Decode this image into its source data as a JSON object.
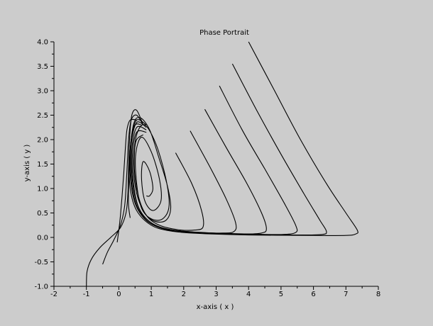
{
  "chart_data": {
    "type": "line",
    "title": "Phase Portrait",
    "xlabel": "x-axis ( x )",
    "ylabel": "y-axis ( y )",
    "xlim": [
      -2,
      8
    ],
    "ylim": [
      -1.0,
      4.0
    ],
    "xticks": [
      "-2",
      "-1",
      "0",
      "1",
      "2",
      "3",
      "4",
      "5",
      "6",
      "7",
      "8"
    ],
    "yticks": [
      "-1.0",
      "-0.5",
      "0.0",
      "0.5",
      "1.0",
      "1.5",
      "2.0",
      "2.5",
      "3.0",
      "3.5",
      "4.0"
    ],
    "grid": false,
    "colors": {
      "background": "#cccccc",
      "line": "#000000"
    },
    "series": [
      {
        "points": [
          [
            4.0,
            4.0
          ],
          [
            4.8,
            3.0
          ],
          [
            5.6,
            2.0
          ],
          [
            6.4,
            1.1
          ],
          [
            7.0,
            0.5
          ],
          [
            7.35,
            0.15
          ],
          [
            7.3,
            0.07
          ],
          [
            7.0,
            0.04
          ],
          [
            6.0,
            0.04
          ],
          [
            4.0,
            0.05
          ],
          [
            2.5,
            0.08
          ],
          [
            1.6,
            0.13
          ],
          [
            1.0,
            0.25
          ],
          [
            0.55,
            0.55
          ],
          [
            0.35,
            1.0
          ],
          [
            0.33,
            1.6
          ],
          [
            0.45,
            2.3
          ],
          [
            0.65,
            2.45
          ],
          [
            0.95,
            2.2
          ],
          [
            1.25,
            1.6
          ],
          [
            1.5,
            1.05
          ],
          [
            1.6,
            0.6
          ],
          [
            1.45,
            0.35
          ],
          [
            1.1,
            0.33
          ],
          [
            0.8,
            0.5
          ],
          [
            0.55,
            0.9
          ],
          [
            0.45,
            1.5
          ],
          [
            0.55,
            2.1
          ],
          [
            0.8,
            2.3
          ],
          [
            1.15,
            1.9
          ],
          [
            1.45,
            1.2
          ],
          [
            1.55,
            0.65
          ],
          [
            1.35,
            0.38
          ],
          [
            1.0,
            0.38
          ],
          [
            0.7,
            0.6
          ],
          [
            0.55,
            1.1
          ],
          [
            0.52,
            1.7
          ],
          [
            0.7,
            2.05
          ],
          [
            1.0,
            1.75
          ],
          [
            1.25,
            1.2
          ],
          [
            1.3,
            0.75
          ],
          [
            1.05,
            0.55
          ],
          [
            0.8,
            0.75
          ],
          [
            0.7,
            1.2
          ],
          [
            0.75,
            1.55
          ],
          [
            0.95,
            1.35
          ],
          [
            1.05,
            1.0
          ],
          [
            0.95,
            0.85
          ],
          [
            0.85,
            0.85
          ]
        ]
      },
      {
        "points": [
          [
            3.5,
            3.55
          ],
          [
            4.25,
            2.6
          ],
          [
            5.0,
            1.7
          ],
          [
            5.7,
            0.9
          ],
          [
            6.2,
            0.35
          ],
          [
            6.4,
            0.12
          ],
          [
            6.25,
            0.06
          ],
          [
            5.5,
            0.05
          ],
          [
            4.0,
            0.06
          ],
          [
            2.3,
            0.1
          ],
          [
            1.4,
            0.17
          ],
          [
            0.85,
            0.35
          ],
          [
            0.5,
            0.7
          ],
          [
            0.35,
            1.3
          ],
          [
            0.38,
            2.0
          ],
          [
            0.55,
            2.4
          ],
          [
            0.85,
            2.3
          ]
        ]
      },
      {
        "points": [
          [
            3.1,
            3.1
          ],
          [
            3.8,
            2.2
          ],
          [
            4.5,
            1.4
          ],
          [
            5.1,
            0.7
          ],
          [
            5.45,
            0.25
          ],
          [
            5.45,
            0.1
          ],
          [
            5.0,
            0.06
          ],
          [
            4.0,
            0.07
          ],
          [
            2.5,
            0.1
          ],
          [
            1.5,
            0.17
          ],
          [
            0.9,
            0.32
          ],
          [
            0.55,
            0.65
          ],
          [
            0.38,
            1.2
          ],
          [
            0.38,
            1.9
          ],
          [
            0.55,
            2.35
          ],
          [
            0.85,
            2.25
          ]
        ]
      },
      {
        "points": [
          [
            2.65,
            2.62
          ],
          [
            3.3,
            1.85
          ],
          [
            3.95,
            1.1
          ],
          [
            4.4,
            0.5
          ],
          [
            4.55,
            0.18
          ],
          [
            4.4,
            0.09
          ],
          [
            3.8,
            0.07
          ],
          [
            2.6,
            0.1
          ],
          [
            1.6,
            0.16
          ],
          [
            0.95,
            0.3
          ],
          [
            0.6,
            0.62
          ],
          [
            0.42,
            1.15
          ],
          [
            0.4,
            1.8
          ],
          [
            0.55,
            2.25
          ],
          [
            0.85,
            2.2
          ]
        ]
      },
      {
        "points": [
          [
            2.2,
            2.18
          ],
          [
            2.8,
            1.45
          ],
          [
            3.3,
            0.8
          ],
          [
            3.6,
            0.3
          ],
          [
            3.55,
            0.12
          ],
          [
            3.2,
            0.09
          ],
          [
            2.4,
            0.1
          ],
          [
            1.6,
            0.15
          ],
          [
            1.0,
            0.3
          ],
          [
            0.62,
            0.6
          ],
          [
            0.45,
            1.1
          ],
          [
            0.42,
            1.7
          ],
          [
            0.55,
            2.15
          ],
          [
            0.85,
            2.15
          ]
        ]
      },
      {
        "points": [
          [
            1.75,
            1.73
          ],
          [
            2.25,
            1.1
          ],
          [
            2.55,
            0.55
          ],
          [
            2.6,
            0.22
          ],
          [
            2.35,
            0.15
          ],
          [
            1.8,
            0.16
          ],
          [
            1.25,
            0.25
          ],
          [
            0.85,
            0.45
          ],
          [
            0.6,
            0.85
          ],
          [
            0.48,
            1.4
          ],
          [
            0.52,
            1.95
          ],
          [
            0.75,
            2.1
          ]
        ]
      },
      {
        "points": [
          [
            -1.0,
            -1.0
          ],
          [
            -0.98,
            -0.7
          ],
          [
            -0.85,
            -0.45
          ],
          [
            -0.6,
            -0.22
          ],
          [
            -0.25,
            0.0
          ],
          [
            0.05,
            0.2
          ],
          [
            0.22,
            0.5
          ],
          [
            0.28,
            0.9
          ],
          [
            0.3,
            1.4
          ],
          [
            0.33,
            2.0
          ],
          [
            0.4,
            2.5
          ],
          [
            0.55,
            2.6
          ],
          [
            0.75,
            2.3
          ]
        ]
      },
      {
        "points": [
          [
            -0.5,
            -0.55
          ],
          [
            -0.35,
            -0.3
          ],
          [
            -0.15,
            -0.05
          ],
          [
            0.05,
            0.25
          ],
          [
            0.17,
            0.6
          ],
          [
            0.22,
            1.0
          ],
          [
            0.26,
            1.5
          ],
          [
            0.3,
            2.0
          ],
          [
            0.38,
            2.4
          ],
          [
            0.55,
            2.5
          ],
          [
            0.75,
            2.3
          ]
        ]
      },
      {
        "points": [
          [
            -0.05,
            -0.1
          ],
          [
            0.0,
            0.15
          ],
          [
            0.05,
            0.45
          ],
          [
            0.1,
            0.85
          ],
          [
            0.15,
            1.3
          ],
          [
            0.2,
            1.8
          ],
          [
            0.25,
            2.2
          ],
          [
            0.35,
            2.4
          ],
          [
            0.55,
            2.4
          ]
        ]
      },
      {
        "points": [
          [
            0.35,
            0.4
          ],
          [
            0.3,
            0.65
          ],
          [
            0.3,
            1.0
          ],
          [
            0.33,
            1.5
          ],
          [
            0.38,
            2.0
          ],
          [
            0.5,
            2.3
          ],
          [
            0.7,
            2.3
          ]
        ]
      }
    ]
  }
}
